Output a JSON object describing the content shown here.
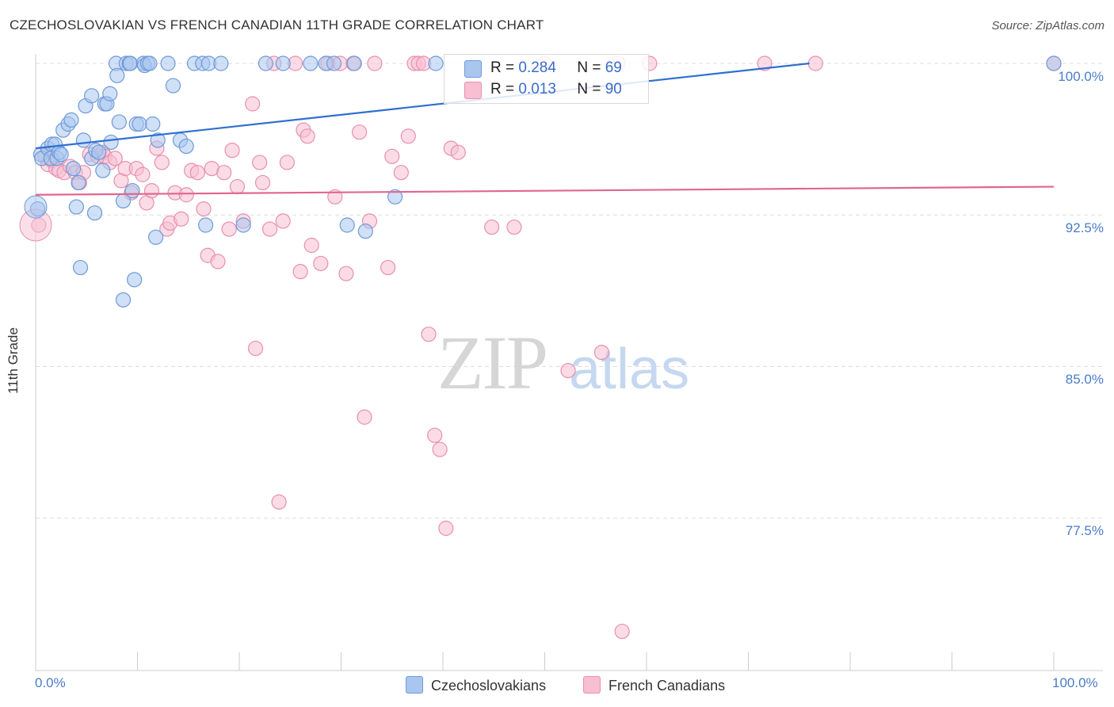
{
  "title": "CZECHOSLOVAKIAN VS FRENCH CANADIAN 11TH GRADE CORRELATION CHART",
  "source": "Source: ZipAtlas.com",
  "watermark": {
    "zip": "ZIP",
    "atlas": "atlas"
  },
  "legend_top": [
    {
      "r_label": "R =",
      "r_value": "0.284",
      "n_label": "N =",
      "n_value": "69"
    },
    {
      "r_label": "R =",
      "r_value": "0.013",
      "n_label": "N =",
      "n_value": "90"
    }
  ],
  "legend_bottom": [
    "Czechoslovakians",
    "French Canadians"
  ],
  "colors": {
    "blue_fill": "#a9c6ef",
    "blue_stroke": "#6e9ad8",
    "blue_line": "#2f6fd0",
    "pink_fill": "#f7bfd1",
    "pink_stroke": "#e98fae",
    "pink_line": "#e0678f",
    "grid": "#dddddd",
    "tick_text": "#4a7cc9"
  },
  "chart_data": {
    "type": "scatter",
    "title": "CZECHOSLOVAKIAN VS FRENCH CANADIAN 11TH GRADE CORRELATION CHART",
    "xlabel": "",
    "ylabel": "11th Grade",
    "xlim": [
      0,
      100
    ],
    "ylim": [
      70.5,
      100.5
    ],
    "x_tick_labels": [
      "0.0%",
      "100.0%"
    ],
    "y_ticks": [
      100.0,
      92.5,
      85.0,
      77.5
    ],
    "y_tick_labels": [
      "100.0%",
      "92.5%",
      "85.0%",
      "77.5%"
    ],
    "series": [
      {
        "name": "Czechoslovakians",
        "trend": [
          [
            0,
            95.8
          ],
          [
            76,
            100.0
          ]
        ],
        "points": [
          [
            0.2,
            92.8
          ],
          [
            0.5,
            95.5
          ],
          [
            0.6,
            95.3
          ],
          [
            1.2,
            95.8
          ],
          [
            1.5,
            95.3
          ],
          [
            1.6,
            96.0
          ],
          [
            1.9,
            96.0
          ],
          [
            2.1,
            95.3
          ],
          [
            2.3,
            95.6
          ],
          [
            2.5,
            95.5
          ],
          [
            2.7,
            96.7
          ],
          [
            3.2,
            97.0
          ],
          [
            3.5,
            97.2
          ],
          [
            3.7,
            94.8
          ],
          [
            4.0,
            92.9
          ],
          [
            4.2,
            94.1
          ],
          [
            4.4,
            89.9
          ],
          [
            4.7,
            96.2
          ],
          [
            4.9,
            97.9
          ],
          [
            5.5,
            95.3
          ],
          [
            5.5,
            98.4
          ],
          [
            5.8,
            92.6
          ],
          [
            5.9,
            95.7
          ],
          [
            6.2,
            95.6
          ],
          [
            6.6,
            94.7
          ],
          [
            6.8,
            98.0
          ],
          [
            7.0,
            98.0
          ],
          [
            7.3,
            98.5
          ],
          [
            7.4,
            96.1
          ],
          [
            7.9,
            100.0
          ],
          [
            8.0,
            99.4
          ],
          [
            8.2,
            97.1
          ],
          [
            8.6,
            88.3
          ],
          [
            8.6,
            93.2
          ],
          [
            8.9,
            100.0
          ],
          [
            9.2,
            100.0
          ],
          [
            9.3,
            100.0
          ],
          [
            9.5,
            93.7
          ],
          [
            9.7,
            89.3
          ],
          [
            9.9,
            97.0
          ],
          [
            10.2,
            97.0
          ],
          [
            10.6,
            100.0
          ],
          [
            10.7,
            99.9
          ],
          [
            11.0,
            100.0
          ],
          [
            11.2,
            100.0
          ],
          [
            11.5,
            97.0
          ],
          [
            11.8,
            91.4
          ],
          [
            12.0,
            96.2
          ],
          [
            13.0,
            100.0
          ],
          [
            13.5,
            98.9
          ],
          [
            14.2,
            96.2
          ],
          [
            14.8,
            95.9
          ],
          [
            15.6,
            100.0
          ],
          [
            16.4,
            100.0
          ],
          [
            16.7,
            92.0
          ],
          [
            17.0,
            100.0
          ],
          [
            18.2,
            100.0
          ],
          [
            20.4,
            92.0
          ],
          [
            22.6,
            100.0
          ],
          [
            24.3,
            100.0
          ],
          [
            27.0,
            100.0
          ],
          [
            28.5,
            100.0
          ],
          [
            29.3,
            100.0
          ],
          [
            30.6,
            92.0
          ],
          [
            31.3,
            100.0
          ],
          [
            32.4,
            91.7
          ],
          [
            35.3,
            93.4
          ],
          [
            39.3,
            100.0
          ],
          [
            100.0,
            100.0
          ]
        ]
      },
      {
        "name": "French Canadians",
        "trend": [
          [
            0,
            93.5
          ],
          [
            100,
            93.9
          ]
        ],
        "points": [
          [
            0.3,
            92.0
          ],
          [
            0.9,
            95.4
          ],
          [
            1.2,
            95.0
          ],
          [
            1.6,
            95.2
          ],
          [
            2.0,
            94.8
          ],
          [
            2.3,
            94.7
          ],
          [
            2.8,
            94.6
          ],
          [
            3.4,
            94.9
          ],
          [
            3.9,
            94.6
          ],
          [
            4.3,
            94.1
          ],
          [
            4.7,
            94.6
          ],
          [
            5.3,
            95.5
          ],
          [
            6.1,
            95.4
          ],
          [
            6.6,
            95.6
          ],
          [
            6.8,
            95.4
          ],
          [
            7.3,
            95.1
          ],
          [
            7.8,
            95.3
          ],
          [
            8.4,
            94.2
          ],
          [
            8.8,
            94.8
          ],
          [
            9.4,
            93.6
          ],
          [
            9.9,
            94.8
          ],
          [
            10.5,
            94.5
          ],
          [
            10.9,
            93.1
          ],
          [
            11.4,
            93.7
          ],
          [
            11.9,
            95.8
          ],
          [
            12.4,
            95.1
          ],
          [
            12.9,
            91.8
          ],
          [
            13.2,
            92.1
          ],
          [
            13.7,
            93.6
          ],
          [
            14.3,
            92.3
          ],
          [
            14.8,
            93.5
          ],
          [
            15.3,
            94.7
          ],
          [
            15.9,
            94.6
          ],
          [
            16.5,
            92.8
          ],
          [
            16.9,
            90.5
          ],
          [
            17.3,
            94.8
          ],
          [
            17.9,
            90.2
          ],
          [
            18.5,
            94.6
          ],
          [
            19.0,
            91.8
          ],
          [
            19.3,
            95.7
          ],
          [
            19.8,
            93.9
          ],
          [
            20.4,
            92.2
          ],
          [
            21.3,
            98.0
          ],
          [
            21.6,
            85.9
          ],
          [
            22.0,
            95.1
          ],
          [
            22.3,
            94.1
          ],
          [
            23.0,
            91.8
          ],
          [
            23.4,
            100.0
          ],
          [
            23.9,
            78.3
          ],
          [
            24.3,
            92.2
          ],
          [
            24.7,
            95.1
          ],
          [
            25.5,
            100.0
          ],
          [
            26.0,
            89.7
          ],
          [
            26.3,
            96.7
          ],
          [
            26.7,
            96.4
          ],
          [
            27.1,
            91.0
          ],
          [
            28.0,
            90.1
          ],
          [
            28.7,
            100.0
          ],
          [
            29.4,
            93.4
          ],
          [
            29.9,
            100.0
          ],
          [
            30.5,
            89.6
          ],
          [
            31.2,
            100.0
          ],
          [
            31.8,
            96.6
          ],
          [
            32.3,
            82.5
          ],
          [
            32.8,
            92.2
          ],
          [
            33.3,
            100.0
          ],
          [
            34.6,
            89.9
          ],
          [
            35.0,
            95.4
          ],
          [
            35.9,
            94.6
          ],
          [
            36.6,
            96.4
          ],
          [
            37.2,
            100.0
          ],
          [
            37.6,
            100.0
          ],
          [
            38.1,
            100.0
          ],
          [
            38.6,
            86.6
          ],
          [
            39.2,
            81.6
          ],
          [
            39.7,
            80.9
          ],
          [
            40.3,
            77.0
          ],
          [
            40.8,
            95.8
          ],
          [
            41.5,
            95.6
          ],
          [
            44.8,
            91.9
          ],
          [
            47.0,
            91.9
          ],
          [
            52.3,
            84.8
          ],
          [
            55.6,
            85.7
          ],
          [
            57.2,
            100.0
          ],
          [
            57.6,
            71.9
          ],
          [
            60.3,
            100.0
          ],
          [
            71.6,
            100.0
          ],
          [
            76.6,
            100.0
          ],
          [
            100.0,
            100.0
          ],
          [
            50.0,
            100.0
          ]
        ]
      }
    ]
  }
}
